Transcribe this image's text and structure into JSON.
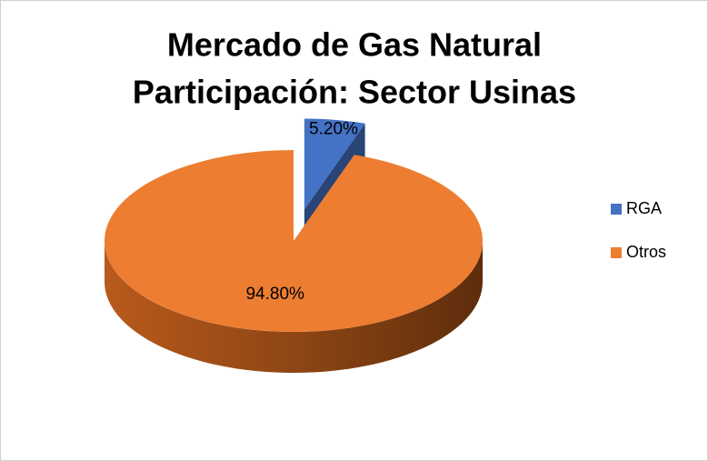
{
  "chart_data": {
    "type": "pie3d",
    "title": [
      "Mercado de Gas Natural",
      "Participación: Sector Usinas"
    ],
    "categories": [
      "RGA",
      "Otros"
    ],
    "values": [
      5.2,
      94.8
    ],
    "value_labels": [
      "5.20%",
      "94.80%"
    ],
    "colors": [
      "#4472c4",
      "#ed7d31"
    ],
    "exploded": [
      true,
      false
    ],
    "legend": "right"
  }
}
